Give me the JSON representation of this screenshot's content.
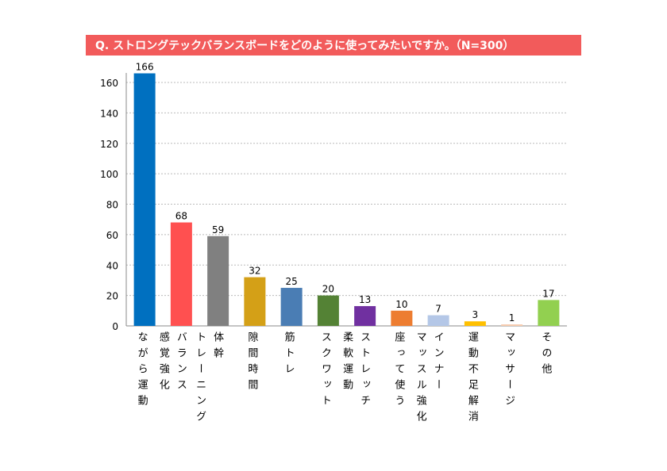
{
  "chart_data": {
    "type": "bar",
    "title": "Q.  ストロングテックバランスボードをどのように使ってみたいですか。（N=300）",
    "categories": [
      [
        "ながら運動"
      ],
      [
        "バランス",
        "感覚強化"
      ],
      [
        "体幹",
        "トレーニング"
      ],
      [
        "隙間時間"
      ],
      [
        "筋トレ"
      ],
      [
        "スクワット"
      ],
      [
        "ストレッチ",
        "柔軟運動"
      ],
      [
        "座って使う"
      ],
      [
        "インナー",
        "マッスル強化"
      ],
      [
        "運動不足解消"
      ],
      [
        "マッサージ"
      ],
      [
        "その他"
      ]
    ],
    "values": [
      166,
      68,
      59,
      32,
      25,
      20,
      13,
      10,
      7,
      3,
      1,
      17
    ],
    "colors": [
      "#0070c0",
      "#ff5050",
      "#808080",
      "#d4a017",
      "#4a7db4",
      "#548235",
      "#7030a0",
      "#ed7d31",
      "#b4c7e7",
      "#ffc000",
      "#f8cbad",
      "#92d050"
    ],
    "ylim": [
      0,
      160
    ],
    "yticks": [
      0,
      20,
      40,
      60,
      80,
      100,
      120,
      140,
      160
    ],
    "grid": true
  }
}
